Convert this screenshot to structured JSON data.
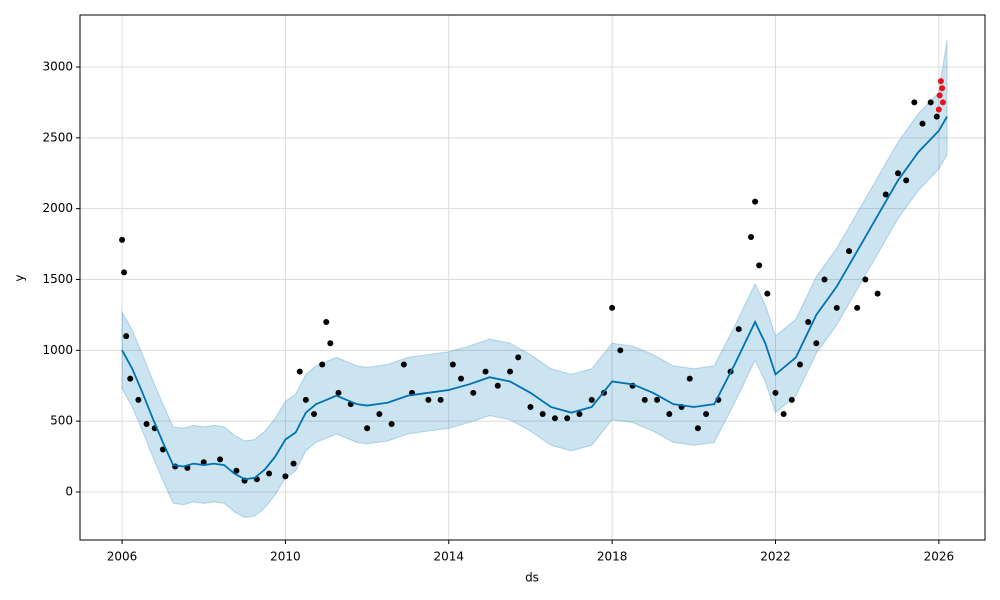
{
  "chart_data": {
    "type": "forecast",
    "x_label": "ds",
    "y_label": "y",
    "xlim": [
      2004.97,
      2027.13
    ],
    "ylim": [
      -339,
      3367
    ],
    "xticks": [
      2006,
      2010,
      2014,
      2018,
      2022,
      2026
    ],
    "yticks": [
      0,
      500,
      1000,
      1500,
      2000,
      2500,
      3000
    ],
    "grid": true,
    "forecast": {
      "color": "#0072B2",
      "band_color": "#0072B2",
      "x": [
        2006.0,
        2006.25,
        2006.5,
        2006.75,
        2007.0,
        2007.25,
        2007.5,
        2007.75,
        2008.0,
        2008.25,
        2008.5,
        2008.75,
        2009.0,
        2009.25,
        2009.5,
        2009.75,
        2010.0,
        2010.25,
        2010.5,
        2010.75,
        2011.0,
        2011.25,
        2011.5,
        2011.75,
        2012.0,
        2012.5,
        2013.0,
        2013.5,
        2014.0,
        2014.5,
        2015.0,
        2015.5,
        2016.0,
        2016.5,
        2017.0,
        2017.5,
        2018.0,
        2018.5,
        2019.0,
        2019.5,
        2020.0,
        2020.5,
        2021.0,
        2021.5,
        2021.75,
        2022.0,
        2022.5,
        2023.0,
        2023.5,
        2024.0,
        2024.5,
        2025.0,
        2025.5,
        2026.0,
        2026.2
      ],
      "values": [
        1000,
        870,
        700,
        520,
        350,
        190,
        180,
        200,
        190,
        200,
        190,
        130,
        90,
        100,
        160,
        250,
        370,
        420,
        560,
        620,
        650,
        680,
        650,
        620,
        610,
        630,
        680,
        700,
        720,
        760,
        810,
        780,
        700,
        600,
        560,
        600,
        780,
        760,
        700,
        620,
        600,
        620,
        900,
        1200,
        1050,
        830,
        950,
        1250,
        1450,
        1700,
        1950,
        2200,
        2400,
        2550,
        2650
      ],
      "lower": [
        730,
        600,
        430,
        250,
        80,
        -80,
        -90,
        -70,
        -80,
        -70,
        -80,
        -140,
        -180,
        -170,
        -110,
        -20,
        100,
        150,
        290,
        350,
        380,
        410,
        380,
        350,
        340,
        360,
        410,
        430,
        450,
        490,
        540,
        510,
        430,
        330,
        290,
        330,
        510,
        490,
        430,
        350,
        330,
        350,
        630,
        930,
        780,
        560,
        680,
        980,
        1180,
        1430,
        1680,
        1930,
        2130,
        2280,
        2380
      ],
      "upper": [
        1270,
        1140,
        970,
        790,
        620,
        460,
        450,
        470,
        460,
        470,
        460,
        400,
        360,
        370,
        430,
        520,
        640,
        690,
        830,
        890,
        920,
        950,
        920,
        890,
        880,
        900,
        950,
        970,
        990,
        1030,
        1080,
        1050,
        970,
        870,
        830,
        870,
        1050,
        1030,
        970,
        890,
        870,
        890,
        1170,
        1470,
        1320,
        1100,
        1220,
        1520,
        1720,
        1970,
        2220,
        2470,
        2670,
        2820,
        3190
      ]
    },
    "observed": {
      "color": "#000000",
      "x": [
        2006.0,
        2006.05,
        2006.1,
        2006.2,
        2006.4,
        2006.6,
        2006.8,
        2007.0,
        2007.3,
        2007.6,
        2008.0,
        2008.4,
        2008.8,
        2009.0,
        2009.3,
        2009.6,
        2010.0,
        2010.2,
        2010.35,
        2010.5,
        2010.7,
        2010.9,
        2011.0,
        2011.1,
        2011.3,
        2011.6,
        2012.0,
        2012.3,
        2012.6,
        2012.9,
        2013.1,
        2013.5,
        2013.8,
        2014.1,
        2014.3,
        2014.6,
        2014.9,
        2015.2,
        2015.5,
        2015.7,
        2016.0,
        2016.3,
        2016.6,
        2016.9,
        2017.2,
        2017.5,
        2017.8,
        2018.0,
        2018.2,
        2018.5,
        2018.8,
        2019.1,
        2019.4,
        2019.7,
        2019.9,
        2020.1,
        2020.3,
        2020.6,
        2020.9,
        2021.1,
        2021.4,
        2021.5,
        2021.6,
        2021.8,
        2022.0,
        2022.2,
        2022.4,
        2022.6,
        2022.8,
        2023.0,
        2023.2,
        2023.5,
        2023.8,
        2024.0,
        2024.2,
        2024.5,
        2024.7,
        2025.0,
        2025.2,
        2025.4,
        2025.6,
        2025.8,
        2025.95
      ],
      "values": [
        1780,
        1550,
        1100,
        800,
        650,
        480,
        450,
        300,
        180,
        170,
        210,
        230,
        150,
        80,
        90,
        130,
        110,
        200,
        850,
        650,
        550,
        900,
        1200,
        1050,
        700,
        620,
        450,
        550,
        480,
        900,
        700,
        650,
        650,
        900,
        800,
        700,
        850,
        750,
        850,
        950,
        600,
        550,
        520,
        520,
        550,
        650,
        700,
        1300,
        1000,
        750,
        650,
        650,
        550,
        600,
        800,
        450,
        550,
        650,
        850,
        1150,
        1800,
        2050,
        1600,
        1400,
        700,
        550,
        650,
        900,
        1200,
        1050,
        1500,
        1300,
        1700,
        1300,
        1500,
        1400,
        2100,
        2250,
        2200,
        2750,
        2600,
        2750,
        2650
      ]
    },
    "future": {
      "color": "#e8141c",
      "x": [
        2026.0,
        2026.02,
        2026.05,
        2026.08,
        2026.1
      ],
      "values": [
        2700,
        2800,
        2900,
        2850,
        2750
      ]
    }
  }
}
